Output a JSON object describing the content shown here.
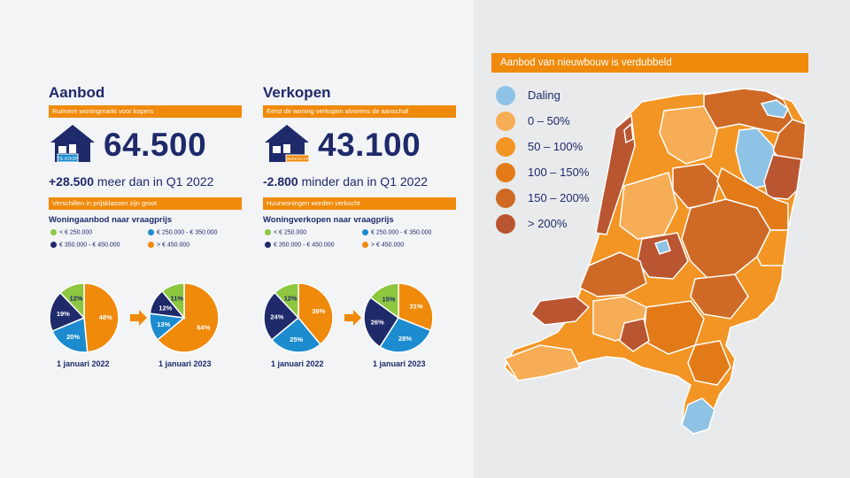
{
  "colors": {
    "green": "#8dc63f",
    "navy": "#1f2a6b",
    "blue": "#1c8ccf",
    "orange": "#f08a0b",
    "map_daling": "#8fc3e6",
    "map_0_50": "#f7ad55",
    "map_50_100": "#f39524",
    "map_100_150": "#e27a18",
    "map_150_200": "#cf6a26",
    "map_200plus": "#b95530"
  },
  "aanbod": {
    "title": "Aanbod",
    "subtitle": "Ruimere woningmarkt voor kopers",
    "house_tag": "TE KOOP",
    "number": "64.500",
    "delta_value": "+28.500",
    "delta_text": " meer dan in Q1 2022",
    "bar2": "Verschillen in prijsklassen zijn groot",
    "chart_title": "Woningaanbod naar vraagprijs",
    "legend": [
      "< € 250.000",
      "€ 250.000 - € 350.000",
      "€ 350.000 - € 450.000",
      "> € 450.000"
    ],
    "arrow_icon": "arrow-right-icon",
    "date1": "1 januari 2022",
    "date2": "1 januari 2023"
  },
  "verkopen": {
    "title": "Verkopen",
    "subtitle": "Eerst de woning verkopen alvorens de aanschaf",
    "house_tag": "VERKOCHT",
    "number": "43.100",
    "delta_value": "-2.800",
    "delta_text": " minder dan in Q1 2022",
    "bar2": "Huurwoningen worden verkocht",
    "chart_title": "Woningverkopen naar vraagprijs",
    "legend": [
      "< € 250.000",
      "€ 250.000 - € 350.000",
      "€ 350.000 - € 450.000",
      "> € 450.000"
    ],
    "arrow_icon": "arrow-right-icon",
    "date1": "1 januari 2022",
    "date2": "1 januari 2023"
  },
  "map": {
    "title": "Aanbod van nieuwbouw is verdubbeld",
    "legend": [
      "Daling",
      "0 – 50%",
      "50 – 100%",
      "100 – 150%",
      "150 – 200%",
      "> 200%"
    ]
  },
  "chart_data": [
    {
      "type": "pie",
      "title": "Woningaanbod naar vraagprijs",
      "subtitle": "1 januari 2022",
      "labels": [
        "< € 250.000",
        "€ 250.000 - € 350.000",
        "€ 350.000 - € 450.000",
        "> € 450.000"
      ],
      "values": [
        12,
        20,
        19,
        48
      ],
      "value_labels": [
        "12%",
        "20%",
        "19%",
        "48%"
      ]
    },
    {
      "type": "pie",
      "title": "Woningaanbod naar vraagprijs",
      "subtitle": "1 januari 2023",
      "labels": [
        "< € 250.000",
        "€ 250.000 - € 350.000",
        "€ 350.000 - € 450.000",
        "> € 450.000"
      ],
      "values": [
        11,
        13,
        12,
        64
      ],
      "value_labels": [
        "11%",
        "13%",
        "12%",
        "64%"
      ]
    },
    {
      "type": "pie",
      "title": "Woningverkopen naar vraagprijs",
      "subtitle": "1 januari 2022",
      "labels": [
        "< € 250.000",
        "€ 250.000 - € 350.000",
        "€ 350.000 - € 450.000",
        "> € 450.000"
      ],
      "values": [
        12,
        25,
        24,
        39
      ],
      "value_labels": [
        "12%",
        "25%",
        "24%",
        "39%"
      ]
    },
    {
      "type": "pie",
      "title": "Woningverkopen naar vraagprijs",
      "subtitle": "1 januari 2023",
      "labels": [
        "< € 250.000",
        "€ 250.000 - € 350.000",
        "€ 350.000 - € 450.000",
        "> € 450.000"
      ],
      "values": [
        15,
        28,
        26,
        31
      ],
      "value_labels": [
        "15%",
        "28%",
        "26%",
        "31%"
      ]
    }
  ]
}
